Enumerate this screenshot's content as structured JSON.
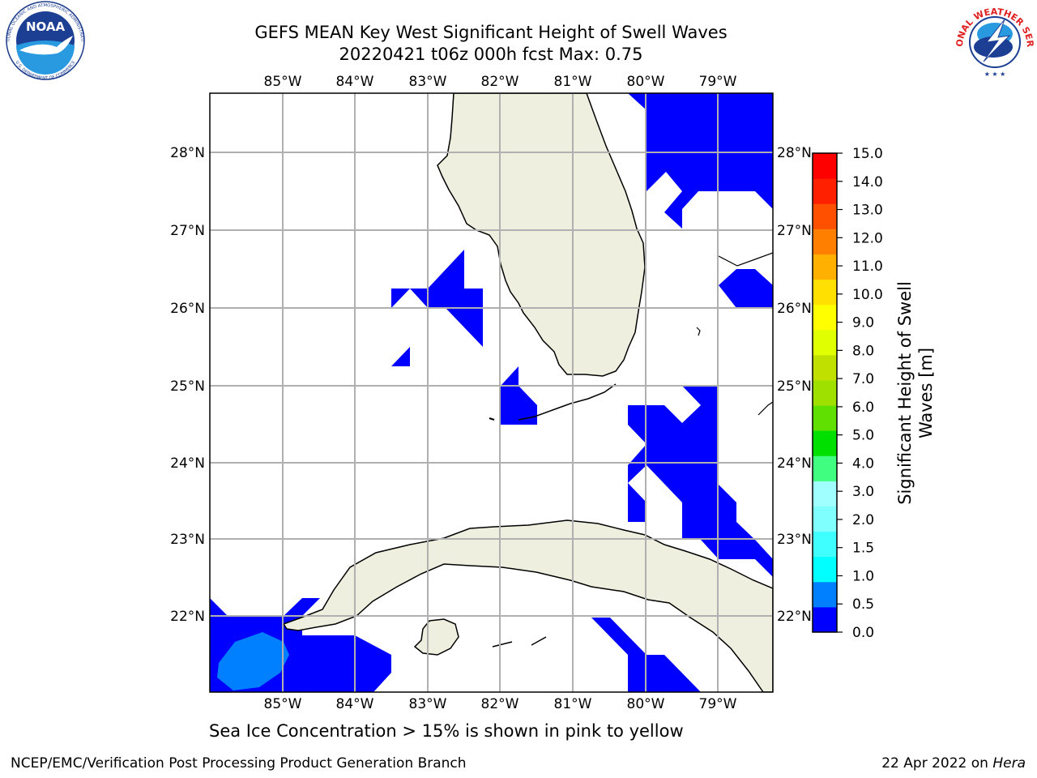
{
  "header": {
    "title_line1": "GEFS MEAN Key West Significant Height of Swell Waves",
    "title_line2": "20220421 t06z 000h fcst    Max: 0.75"
  },
  "logos": {
    "noaa_text": "NOAA",
    "noaa_ring_top": "NATIONAL OCEANIC AND ATMOSPHERIC ADMINISTRATION",
    "noaa_ring_bottom": "U.S. DEPARTMENT OF COMMERCE",
    "nws_ring": "NATIONAL WEATHER SERVICE"
  },
  "map": {
    "lon_labels": [
      "85°W",
      "84°W",
      "83°W",
      "82°W",
      "81°W",
      "80°W",
      "79°W"
    ],
    "lat_labels": [
      "28°N",
      "27°N",
      "26°N",
      "25°N",
      "24°N",
      "23°N",
      "22°N"
    ],
    "fill_colors": {
      "swell_0_0p5": "#0000ff",
      "swell_0p5_1": "#0080ff",
      "land": "#efefdf"
    }
  },
  "colorbar": {
    "ticks": [
      "0.0",
      "0.5",
      "1.0",
      "1.5",
      "2.0",
      "3.0",
      "4.0",
      "5.0",
      "6.0",
      "7.0",
      "8.0",
      "9.0",
      "10.0",
      "11.0",
      "12.0",
      "13.0",
      "14.0",
      "15.0"
    ],
    "colors": [
      "#0000ff",
      "#0080ff",
      "#00ffff",
      "#40ffff",
      "#80ffff",
      "#a0ffff",
      "#40ff80",
      "#00e000",
      "#60e000",
      "#a0e000",
      "#c0e000",
      "#e0ff00",
      "#ffff00",
      "#ffe000",
      "#ffb000",
      "#ff8000",
      "#ff5000",
      "#ff2000",
      "#ff0000"
    ],
    "label_line1": "Significant Height of Swell",
    "label_line2": "Waves [m]"
  },
  "footer": {
    "note": "Sea Ice Concentration > 15% is shown in pink to yellow",
    "credit_left": "NCEP/EMC/Verification Post Processing Product Generation Branch",
    "credit_date": "22 Apr 2022 on ",
    "credit_machine": "Hera"
  }
}
